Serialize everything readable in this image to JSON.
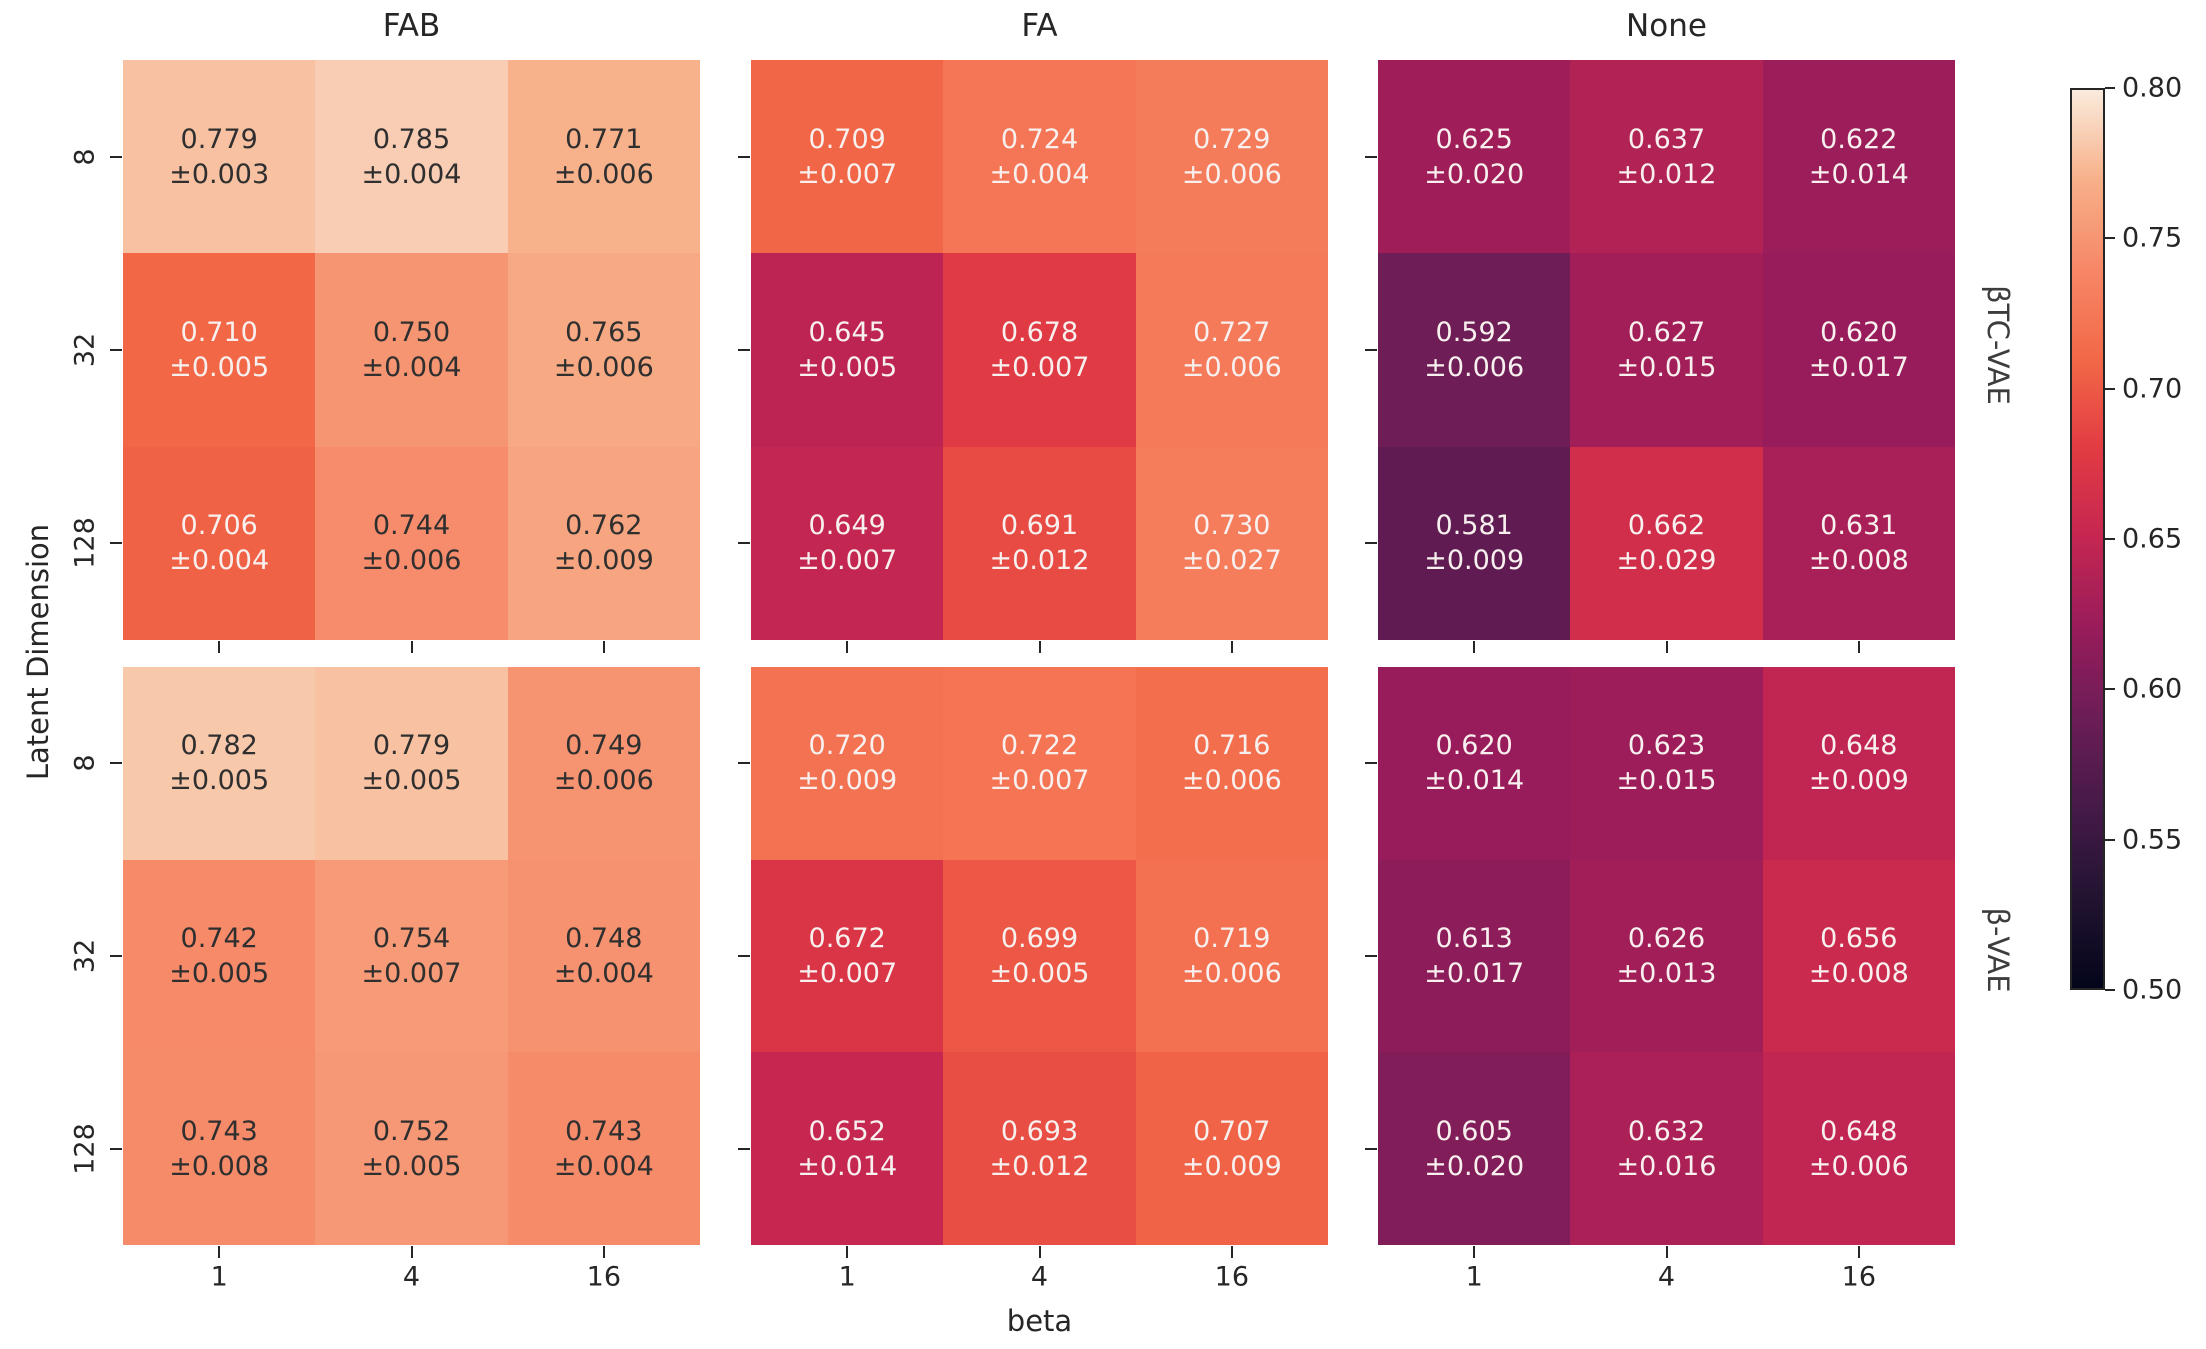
{
  "figure": {
    "background": "#ffffff",
    "text_color": "#262626",
    "annotation_dark": "#2f2f2f",
    "annotation_light": "#f8f0ee",
    "colorbar": {
      "ticks": [
        "0.80",
        "0.75",
        "0.70",
        "0.65",
        "0.60",
        "0.55",
        "0.50"
      ]
    }
  },
  "chart_data": {
    "type": "heatmap",
    "facet_cols": [
      "FAB",
      "FA",
      "None"
    ],
    "facet_rows": [
      "βTC-VAE",
      "β-VAE"
    ],
    "xlabel": "beta",
    "ylabel": "Latent Dimension",
    "x_ticks": [
      "1",
      "4",
      "16"
    ],
    "y_ticks": [
      "8",
      "32",
      "128"
    ],
    "vmin": 0.5,
    "vmax": 0.8,
    "colormap_name": "rocket",
    "colormap_anchors": [
      {
        "t": 0.0,
        "hex": "#03051A"
      },
      {
        "t": 0.1,
        "hex": "#221331"
      },
      {
        "t": 0.2,
        "hex": "#451A48"
      },
      {
        "t": 0.3,
        "hex": "#6B1D56"
      },
      {
        "t": 0.4,
        "hex": "#981C5B"
      },
      {
        "t": 0.5,
        "hex": "#C42651"
      },
      {
        "t": 0.6,
        "hex": "#E23B43"
      },
      {
        "t": 0.7,
        "hex": "#F26847"
      },
      {
        "t": 0.8,
        "hex": "#F68767"
      },
      {
        "t": 0.9,
        "hex": "#F7B089"
      },
      {
        "t": 1.0,
        "hex": "#FAEBDD"
      }
    ],
    "white_text_below": 0.74,
    "panels": [
      {
        "facet_row": "βTC-VAE",
        "facet_col": "FAB",
        "values": [
          [
            0.779,
            0.785,
            0.771
          ],
          [
            0.71,
            0.75,
            0.765
          ],
          [
            0.706,
            0.744,
            0.762
          ]
        ],
        "errors": [
          [
            0.003,
            0.004,
            0.006
          ],
          [
            0.005,
            0.004,
            0.006
          ],
          [
            0.004,
            0.006,
            0.009
          ]
        ]
      },
      {
        "facet_row": "βTC-VAE",
        "facet_col": "FA",
        "values": [
          [
            0.709,
            0.724,
            0.729
          ],
          [
            0.645,
            0.678,
            0.727
          ],
          [
            0.649,
            0.691,
            0.73
          ]
        ],
        "errors": [
          [
            0.007,
            0.004,
            0.006
          ],
          [
            0.005,
            0.007,
            0.006
          ],
          [
            0.007,
            0.012,
            0.027
          ]
        ]
      },
      {
        "facet_row": "βTC-VAE",
        "facet_col": "None",
        "values": [
          [
            0.625,
            0.637,
            0.622
          ],
          [
            0.592,
            0.627,
            0.62
          ],
          [
            0.581,
            0.662,
            0.631
          ]
        ],
        "errors": [
          [
            0.02,
            0.012,
            0.014
          ],
          [
            0.006,
            0.015,
            0.017
          ],
          [
            0.009,
            0.029,
            0.008
          ]
        ]
      },
      {
        "facet_row": "β-VAE",
        "facet_col": "FAB",
        "values": [
          [
            0.782,
            0.779,
            0.749
          ],
          [
            0.742,
            0.754,
            0.748
          ],
          [
            0.743,
            0.752,
            0.743
          ]
        ],
        "errors": [
          [
            0.005,
            0.005,
            0.006
          ],
          [
            0.005,
            0.007,
            0.004
          ],
          [
            0.008,
            0.005,
            0.004
          ]
        ]
      },
      {
        "facet_row": "β-VAE",
        "facet_col": "FA",
        "values": [
          [
            0.72,
            0.722,
            0.716
          ],
          [
            0.672,
            0.699,
            0.719
          ],
          [
            0.652,
            0.693,
            0.707
          ]
        ],
        "errors": [
          [
            0.009,
            0.007,
            0.006
          ],
          [
            0.007,
            0.005,
            0.006
          ],
          [
            0.014,
            0.012,
            0.009
          ]
        ]
      },
      {
        "facet_row": "β-VAE",
        "facet_col": "None",
        "values": [
          [
            0.62,
            0.623,
            0.648
          ],
          [
            0.613,
            0.626,
            0.656
          ],
          [
            0.605,
            0.632,
            0.648
          ]
        ],
        "errors": [
          [
            0.014,
            0.015,
            0.009
          ],
          [
            0.017,
            0.013,
            0.008
          ],
          [
            0.02,
            0.016,
            0.006
          ]
        ]
      }
    ]
  }
}
